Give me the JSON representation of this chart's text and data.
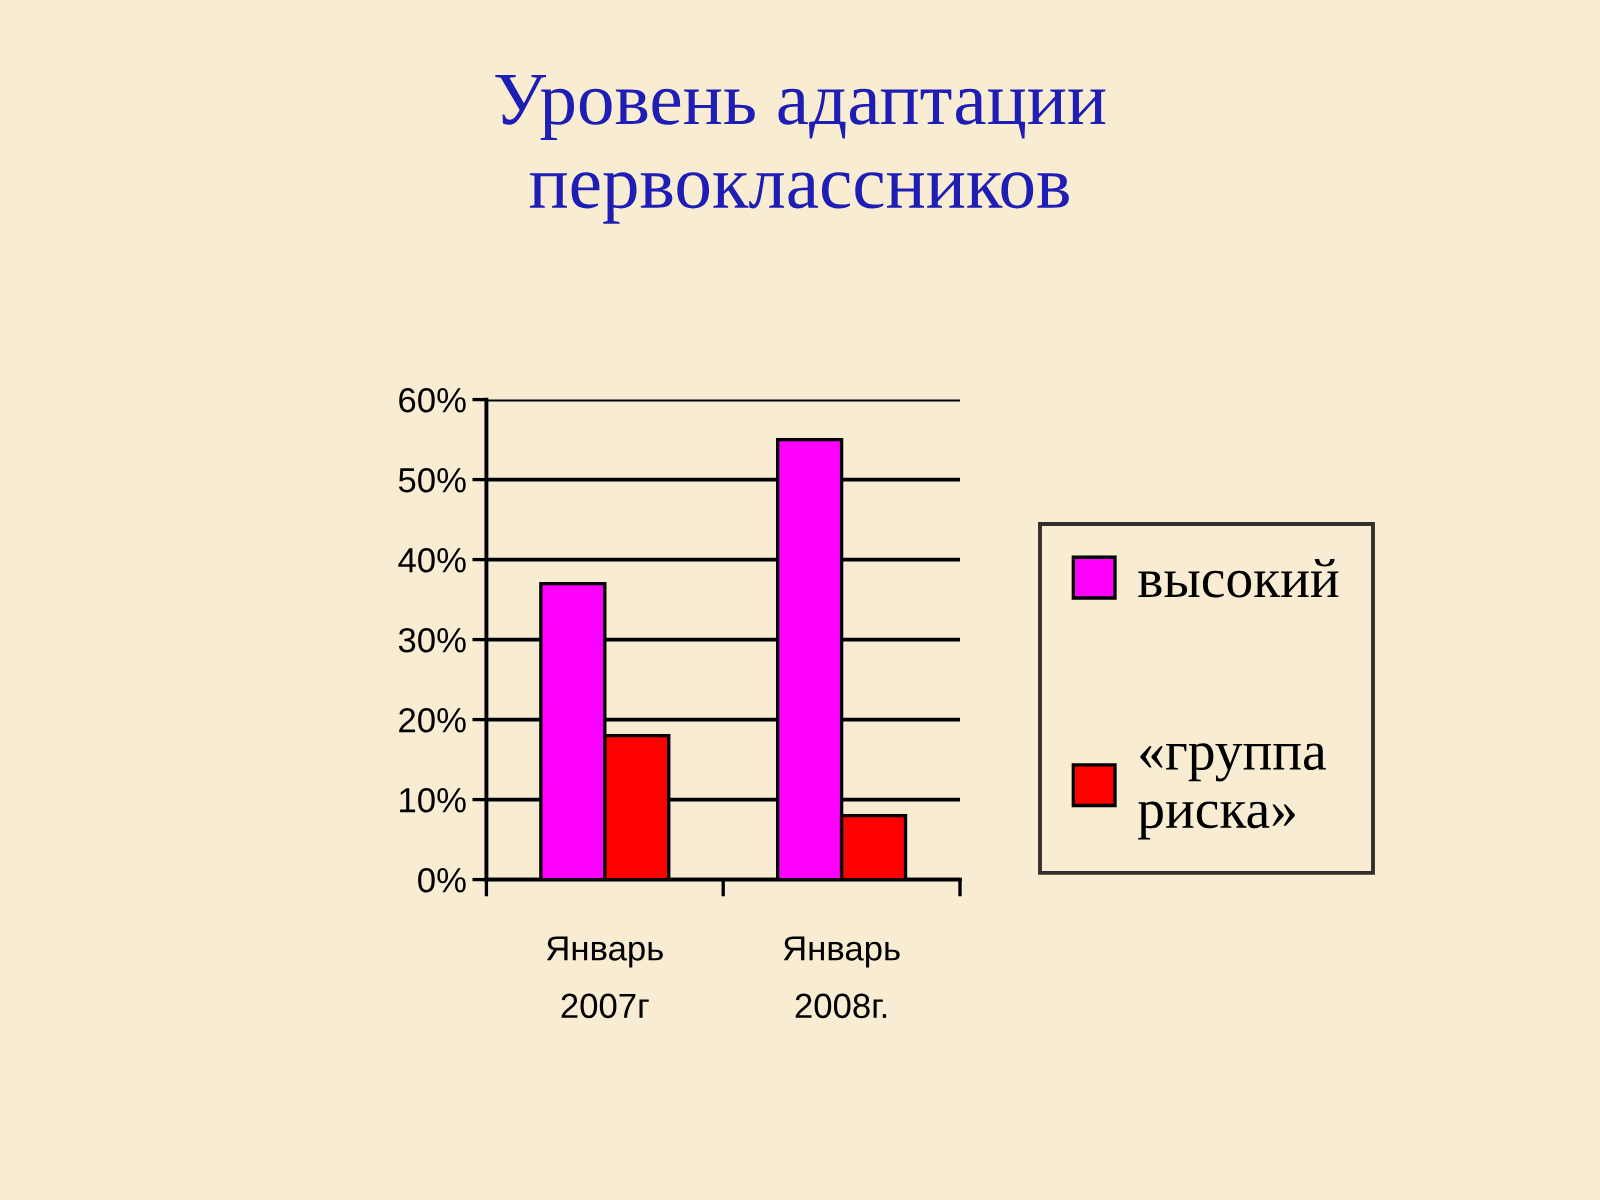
{
  "chart_data": {
    "type": "bar",
    "title": "Уровень адаптации\nпервоклассников",
    "categories": [
      "Январь\n2007г",
      "Январь\n2008г."
    ],
    "series": [
      {
        "name": "высокий",
        "color": "#ff00ff",
        "values": [
          37,
          55
        ]
      },
      {
        "name": "«группа\nриска»",
        "color": "#ff0000",
        "values": [
          18,
          8
        ]
      }
    ],
    "ylim": [
      0,
      60
    ],
    "yticks": [
      {
        "value": 0,
        "label": "0%"
      },
      {
        "value": 10,
        "label": "10%"
      },
      {
        "value": 20,
        "label": "20%"
      },
      {
        "value": 30,
        "label": "30%"
      },
      {
        "value": 40,
        "label": "40%"
      },
      {
        "value": 50,
        "label": "50%"
      },
      {
        "value": 60,
        "label": "60%"
      }
    ],
    "grid": "y",
    "legend": "right"
  }
}
